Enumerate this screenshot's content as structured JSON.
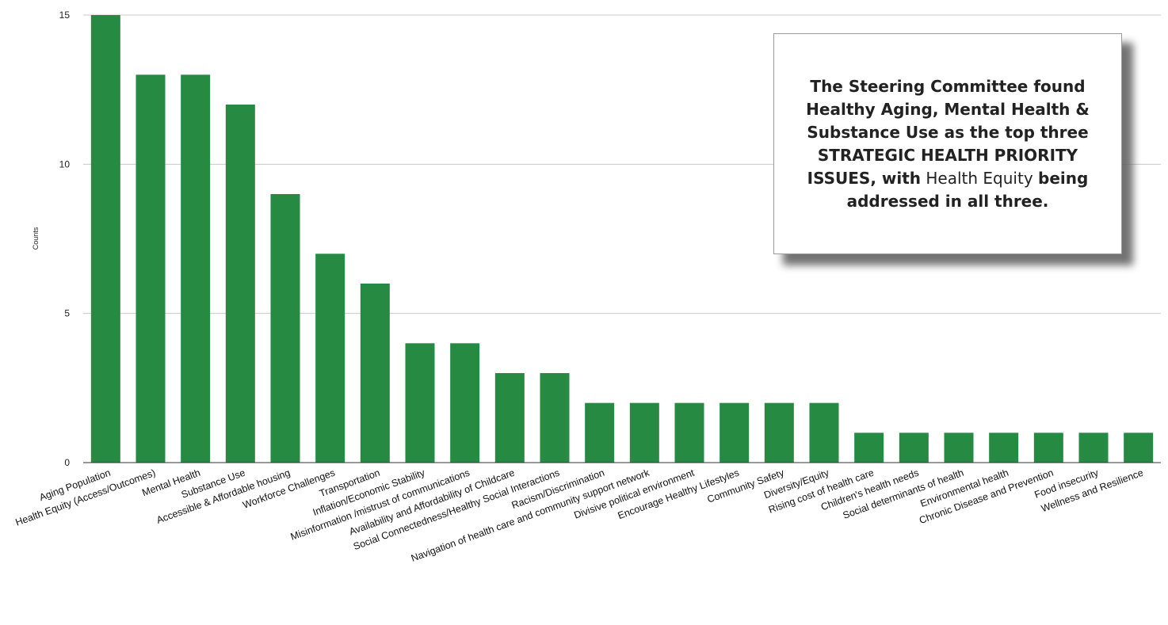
{
  "chart_data": {
    "type": "bar",
    "categories": [
      "Aging Population",
      "Health Equity (Access/Outcomes)",
      "Mental Health",
      "Substance Use",
      "Accessible & Affordable housing",
      "Workforce Challenges",
      "Transportation",
      "Inflation/Economic Stability",
      "Misinformation /mistrust of communications",
      "Availability and Affordability of Childcare",
      "Social Connectedness/Healthy Social Interactions",
      "Racism/Discrimination",
      "Navigation of health care and community support network",
      "Divisive political environment",
      "Encourage Healthy Lifestyles",
      "Community Safety",
      "Diversity/Equity",
      "Rising cost of health care",
      "Children's health needs",
      "Social determinants of health",
      "Environmental health",
      "Chronic Disease and Prevention",
      "Food insecurity",
      "Wellness and Resilience"
    ],
    "values": [
      15,
      13,
      13,
      12,
      9,
      7,
      6,
      4,
      4,
      3,
      3,
      2,
      2,
      2,
      2,
      2,
      2,
      1,
      1,
      1,
      1,
      1,
      1,
      1
    ],
    "ylabel": "Counts",
    "ylim": [
      0,
      15
    ],
    "yticks": [
      0,
      5,
      10,
      15
    ],
    "grid": true,
    "bar_color": "#268a43"
  },
  "callout": {
    "part1": "The Steering Committee found Healthy Aging, Mental Health & Substance Use as the top three STRATEGIC HEALTH PRIORITY ISSUES, with",
    "part2": "Health Equity",
    "part3": "being addressed in all three."
  }
}
